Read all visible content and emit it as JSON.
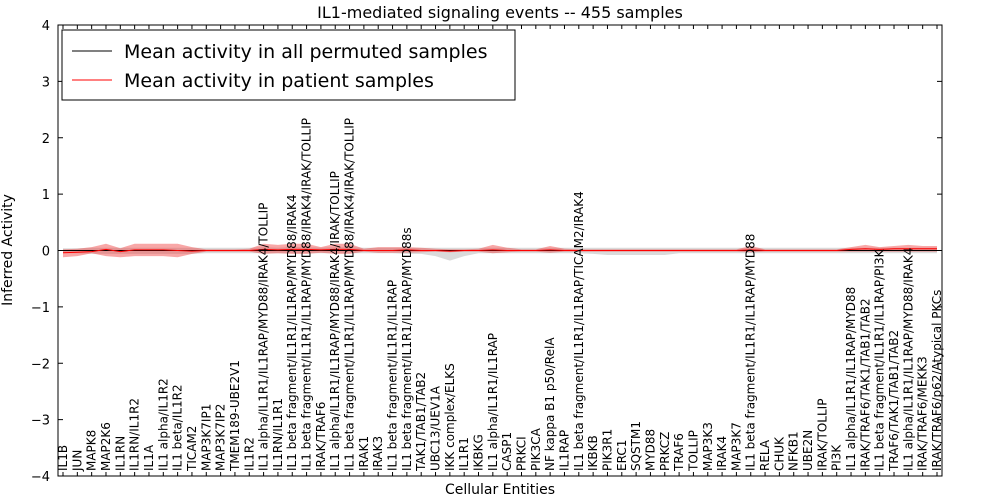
{
  "chart_data": {
    "type": "line",
    "title": "IL1-mediated signaling events -- 455 samples",
    "xlabel": "Cellular Entities",
    "ylabel": "Inferred Activity",
    "ylim": [
      -4,
      4
    ],
    "yticks": [
      -4,
      -3,
      -2,
      -1,
      0,
      1,
      2,
      3,
      4
    ],
    "ytick_labels": [
      "−4",
      "−3",
      "−2",
      "−1",
      "0",
      "1",
      "2",
      "3",
      "4"
    ],
    "legend_position": "top-left",
    "categories": [
      "IL1B",
      "JUN",
      "MAPK8",
      "MAP2K6",
      "IL1RN",
      "IL1RN/IL1R2",
      "IL1A",
      "IL1 alpha/IL1R2",
      "IL1 beta/IL1R2",
      "TICAM2",
      "MAP3K7IP1",
      "MAP3K7IP2",
      "TMEM189-UBE2V1",
      "IL1R2",
      "IL1 alpha/IL1R1/IL1RAP/MYD88/IRAK4/TOLLIP",
      "IL1RN/IL1R1",
      "IL1 beta fragment/IL1R1/IL1RAP/MYD88/IRAK4",
      "IL1 beta fragment/IL1R1/IL1RAP/MYD88/IRAK4/IRAK/TOLLIP",
      "IRAK/TRAF6",
      "IL1 alpha/IL1R1/IL1RAP/MYD88/IRAK4/IRAK/TOLLIP",
      "IL1 beta fragment/IL1R1/IL1RAP/MYD88/IRAK4/IRAK/TOLLIP",
      "IRAK1",
      "IRAK3",
      "IL1 beta fragment/IL1R1/IL1RAP",
      "IL1 beta fragment/IL1R1/IL1RAP/MYD88s",
      "TAK1/TAB1/TAB2",
      "UBC13/UEV1A",
      "IKK complex/ELKS",
      "IL1R1",
      "IKBKG",
      "IL1 alpha/IL1R1/IL1RAP",
      "CASP1",
      "PRKCI",
      "PIK3CA",
      "NF kappa B1 p50/RelA",
      "IL1RAP",
      "IL1 beta fragment/IL1R1/IL1RAP/TICAM2/IRAK4",
      "IKBKB",
      "PIK3R1",
      "ERC1",
      "SQSTM1",
      "MYD88",
      "PRKCZ",
      "TRAF6",
      "TOLLIP",
      "MAP3K3",
      "IRAK4",
      "MAP3K7",
      "IL1 beta fragment/IL1R1/IL1RAP/MYD88",
      "RELA",
      "CHUK",
      "NFKB1",
      "UBE2N",
      "IRAK/TOLLIP",
      "PI3K",
      "IL1 alpha/IL1R1/IL1RAP/MYD88",
      "IRAK/TRAF6/TAK1/TAB1/TAB2",
      "IL1 beta fragment/IL1R1/IL1RAP/PI3K",
      "TRAF6/TAK1/TAB1/TAB2",
      "IL1 alpha/IL1R1/IL1RAP/MYD88/IRAK4",
      "IRAK/TRAF6/MEKK3",
      "IRAK/TRAF6/p62/Atypical PKCs"
    ],
    "series": [
      {
        "name": "Mean activity in all permuted samples",
        "color": "#000000",
        "values": [
          0.0,
          0.0,
          0.0,
          0.0,
          0.0,
          0.0,
          0.0,
          0.0,
          0.0,
          0.0,
          0.0,
          0.0,
          0.0,
          0.0,
          0.0,
          0.0,
          0.0,
          0.0,
          0.0,
          0.0,
          0.0,
          0.0,
          0.0,
          0.0,
          0.0,
          0.0,
          0.0,
          0.0,
          0.0,
          0.0,
          0.0,
          0.0,
          0.0,
          0.0,
          0.0,
          0.0,
          0.0,
          0.0,
          0.0,
          0.0,
          0.0,
          0.0,
          0.0,
          0.0,
          0.0,
          0.0,
          0.0,
          0.0,
          0.0,
          0.0,
          0.0,
          0.0,
          0.0,
          0.0,
          0.0,
          0.0,
          0.0,
          0.0,
          0.0,
          0.0,
          0.0,
          0.0
        ],
        "band_upper": [
          0.04,
          0.04,
          0.05,
          0.05,
          0.05,
          0.05,
          0.05,
          0.05,
          0.05,
          0.05,
          0.05,
          0.05,
          0.05,
          0.05,
          0.06,
          0.05,
          0.06,
          0.06,
          0.05,
          0.06,
          0.06,
          0.05,
          0.05,
          0.05,
          0.05,
          0.05,
          0.05,
          0.05,
          0.05,
          0.05,
          0.05,
          0.05,
          0.05,
          0.05,
          0.05,
          0.05,
          0.05,
          0.05,
          0.05,
          0.05,
          0.05,
          0.05,
          0.05,
          0.05,
          0.05,
          0.05,
          0.05,
          0.05,
          0.05,
          0.05,
          0.05,
          0.05,
          0.05,
          0.05,
          0.05,
          0.05,
          0.05,
          0.05,
          0.05,
          0.05,
          0.05,
          0.05
        ],
        "band_lower": [
          -0.05,
          -0.05,
          -0.06,
          -0.06,
          -0.06,
          -0.06,
          -0.06,
          -0.06,
          -0.06,
          -0.06,
          -0.05,
          -0.05,
          -0.05,
          -0.05,
          -0.05,
          -0.05,
          -0.05,
          -0.05,
          -0.05,
          -0.05,
          -0.05,
          -0.05,
          -0.05,
          -0.05,
          -0.06,
          -0.06,
          -0.1,
          -0.18,
          -0.1,
          -0.05,
          -0.05,
          -0.05,
          -0.05,
          -0.05,
          -0.05,
          -0.05,
          -0.05,
          -0.06,
          -0.08,
          -0.08,
          -0.08,
          -0.08,
          -0.08,
          -0.05,
          -0.05,
          -0.05,
          -0.05,
          -0.05,
          -0.05,
          -0.05,
          -0.05,
          -0.05,
          -0.05,
          -0.05,
          -0.05,
          -0.05,
          -0.05,
          -0.05,
          -0.05,
          -0.05,
          -0.05,
          -0.05
        ]
      },
      {
        "name": "Mean activity in patient samples",
        "color": "#ff0000",
        "values": [
          -0.04,
          -0.03,
          -0.02,
          0.02,
          -0.02,
          0.01,
          0.01,
          0.01,
          0.0,
          -0.01,
          0.0,
          0.0,
          0.0,
          0.0,
          0.02,
          0.01,
          0.02,
          0.02,
          0.01,
          0.02,
          0.02,
          0.0,
          0.0,
          0.0,
          0.01,
          0.0,
          0.0,
          -0.01,
          0.0,
          0.0,
          0.01,
          0.0,
          0.0,
          0.0,
          0.01,
          0.0,
          0.0,
          0.0,
          0.0,
          0.0,
          0.0,
          0.0,
          0.0,
          0.0,
          0.0,
          0.0,
          0.0,
          0.0,
          0.01,
          0.0,
          0.0,
          0.0,
          0.0,
          0.0,
          0.0,
          0.02,
          0.03,
          0.02,
          0.03,
          0.03,
          0.03,
          0.03
        ],
        "band_upper": [
          0.02,
          0.03,
          0.06,
          0.12,
          0.04,
          0.12,
          0.12,
          0.12,
          0.12,
          0.06,
          0.02,
          0.02,
          0.02,
          0.03,
          0.12,
          0.1,
          0.12,
          0.12,
          0.06,
          0.12,
          0.12,
          0.03,
          0.06,
          0.06,
          0.06,
          0.05,
          0.03,
          0.02,
          0.02,
          0.03,
          0.1,
          0.05,
          0.02,
          0.02,
          0.08,
          0.03,
          0.02,
          0.02,
          0.02,
          0.02,
          0.02,
          0.02,
          0.02,
          0.02,
          0.02,
          0.02,
          0.02,
          0.02,
          0.08,
          0.02,
          0.02,
          0.02,
          0.02,
          0.02,
          0.02,
          0.06,
          0.1,
          0.06,
          0.08,
          0.1,
          0.08,
          0.08
        ],
        "band_lower": [
          -0.12,
          -0.1,
          -0.05,
          -0.1,
          -0.12,
          -0.1,
          -0.1,
          -0.1,
          -0.12,
          -0.06,
          -0.02,
          -0.02,
          -0.02,
          -0.02,
          -0.06,
          -0.05,
          -0.06,
          -0.06,
          -0.04,
          -0.06,
          -0.06,
          -0.02,
          -0.04,
          -0.04,
          -0.04,
          -0.03,
          -0.02,
          -0.03,
          -0.02,
          -0.02,
          -0.05,
          -0.03,
          -0.02,
          -0.02,
          -0.04,
          -0.02,
          -0.02,
          -0.02,
          -0.02,
          -0.02,
          -0.02,
          -0.02,
          -0.02,
          -0.02,
          -0.02,
          -0.02,
          -0.02,
          -0.02,
          -0.03,
          -0.02,
          -0.02,
          -0.02,
          -0.02,
          -0.02,
          -0.02,
          -0.02,
          -0.02,
          -0.02,
          -0.02,
          -0.02,
          -0.02,
          -0.02
        ]
      }
    ]
  }
}
